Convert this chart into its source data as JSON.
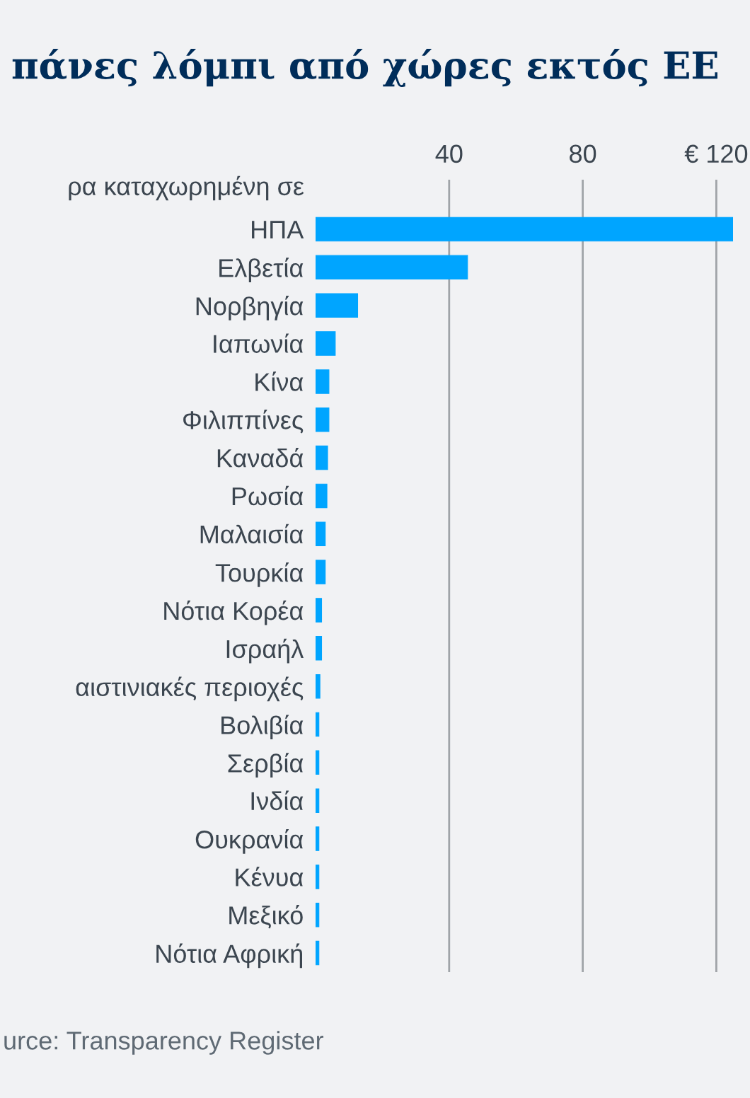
{
  "chart_data": {
    "type": "bar",
    "orientation": "horizontal",
    "title": "πάνες λόμπι από χώρες εκτός ΕΕ",
    "ylabel": "ρα καταχωρημένη σε",
    "categories": [
      "ΗΠΑ",
      "Ελβετία",
      "Νορβηγία",
      "Ιαπωνία",
      "Κίνα",
      "Φιλιππίνες",
      "Καναδά",
      "Ρωσία",
      "Μαλαισία",
      "Τουρκία",
      "Νότια Κορέα",
      "Ισραήλ",
      "αιστινιακές περιοχές",
      "Βολιβία",
      "Σερβία",
      "Ινδία",
      "Ουκρανία",
      "Κένυα",
      "Μεξικό",
      "Νότια Αφρική"
    ],
    "values": [
      125,
      45.5,
      12.6,
      5.9,
      4.0,
      4.0,
      3.6,
      3.4,
      2.9,
      2.9,
      1.8,
      1.8,
      1.3,
      1.0,
      1.0,
      1.0,
      1.0,
      1.0,
      1.0,
      1.0
    ],
    "color": "#00a5ff",
    "xlim": [
      0,
      125
    ],
    "xticks": [
      40,
      80,
      {
        "value": 120,
        "label": "€ 120"
      }
    ],
    "grid": "x",
    "annotations": [
      "urce: Transparency Register"
    ]
  }
}
